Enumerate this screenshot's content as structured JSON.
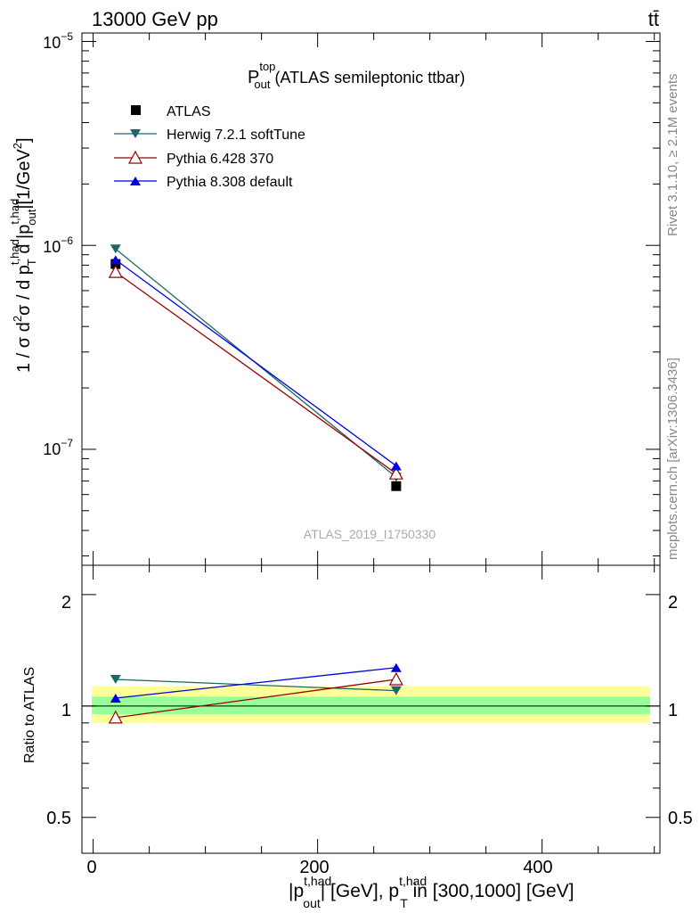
{
  "header": {
    "left": "13000 GeV pp",
    "right": "tt̄"
  },
  "side_labels": {
    "rivet": "Rivet 3.1.10, ≥ 2.1M events",
    "mcplots": "mcplots.cern.ch [arXiv:1306.3436]"
  },
  "watermark": "ATLAS_2019_I1750330",
  "plot_title": {
    "main": "P",
    "sup": "top",
    "sub": "out",
    "rest": " (ATLAS semileptonic ttbar)"
  },
  "ylabel_main": {
    "lead": "1 / σ d",
    "sup2": "2",
    "sigma": "σ / d p",
    "supA": "t,had",
    "subT": "T",
    "mid": " d |p",
    "supB": "t,had",
    "subOut": "out",
    "tail": "|[1/GeV",
    "sup3": "2",
    "close": "]"
  },
  "ylabel_ratio": "Ratio to ATLAS",
  "xlabel": {
    "lead": "|p",
    "supA": "t,had",
    "subA": "out",
    "mid": "| [GeV], p",
    "supB": "t,had",
    "subB": "T",
    "tail": " in [300,1000] [GeV]"
  },
  "colors": {
    "atlas": "#000000",
    "herwig": "#1f6666",
    "pythia6": "#990000",
    "pythia8": "#0000dd",
    "band_outer": "#ffff99",
    "band_inner": "#99ff99"
  },
  "chart_data": [
    {
      "type": "line",
      "panel": "main",
      "yscale": "log",
      "xlim": [
        -10,
        505
      ],
      "ylim": [
        2.7e-08,
        1.1e-05
      ],
      "ytick_labels": [
        {
          "base": "10",
          "exp": "−5"
        },
        {
          "base": "10",
          "exp": "−6"
        },
        {
          "base": "10",
          "exp": "−7"
        }
      ],
      "series": [
        {
          "name": "ATLAS",
          "marker": "square",
          "x": [
            20,
            270
          ],
          "y": [
            8.1e-07,
            6.6e-08
          ]
        },
        {
          "name": "Herwig 7.2.1 softTune",
          "marker": "triangle-down",
          "x": [
            20,
            270
          ],
          "y": [
            9.6e-07,
            7.3e-08
          ]
        },
        {
          "name": "Pythia 6.428 370",
          "marker": "triangle-open",
          "x": [
            20,
            270
          ],
          "y": [
            7.4e-07,
            7.6e-08
          ]
        },
        {
          "name": "Pythia 8.308 default",
          "marker": "triangle-up",
          "x": [
            20,
            270
          ],
          "y": [
            8.5e-07,
            8.3e-08
          ]
        }
      ]
    },
    {
      "type": "line",
      "panel": "ratio",
      "yscale": "log",
      "xlim": [
        -10,
        505
      ],
      "ylim": [
        0.4,
        2.4
      ],
      "ytick_labels": [
        "2",
        "1",
        "0.5"
      ],
      "xtick_labels": [
        "0",
        "200",
        "400"
      ],
      "band_outer": [
        0.9,
        1.13
      ],
      "band_inner": [
        0.95,
        1.06
      ],
      "series": [
        {
          "name": "Herwig 7.2.1 softTune",
          "marker": "triangle-down",
          "x": [
            20,
            270
          ],
          "y": [
            1.18,
            1.1
          ]
        },
        {
          "name": "Pythia 6.428 370",
          "marker": "triangle-open",
          "x": [
            20,
            270
          ],
          "y": [
            0.93,
            1.18
          ]
        },
        {
          "name": "Pythia 8.308 default",
          "marker": "triangle-up",
          "x": [
            20,
            270
          ],
          "y": [
            1.05,
            1.27
          ]
        }
      ]
    }
  ]
}
